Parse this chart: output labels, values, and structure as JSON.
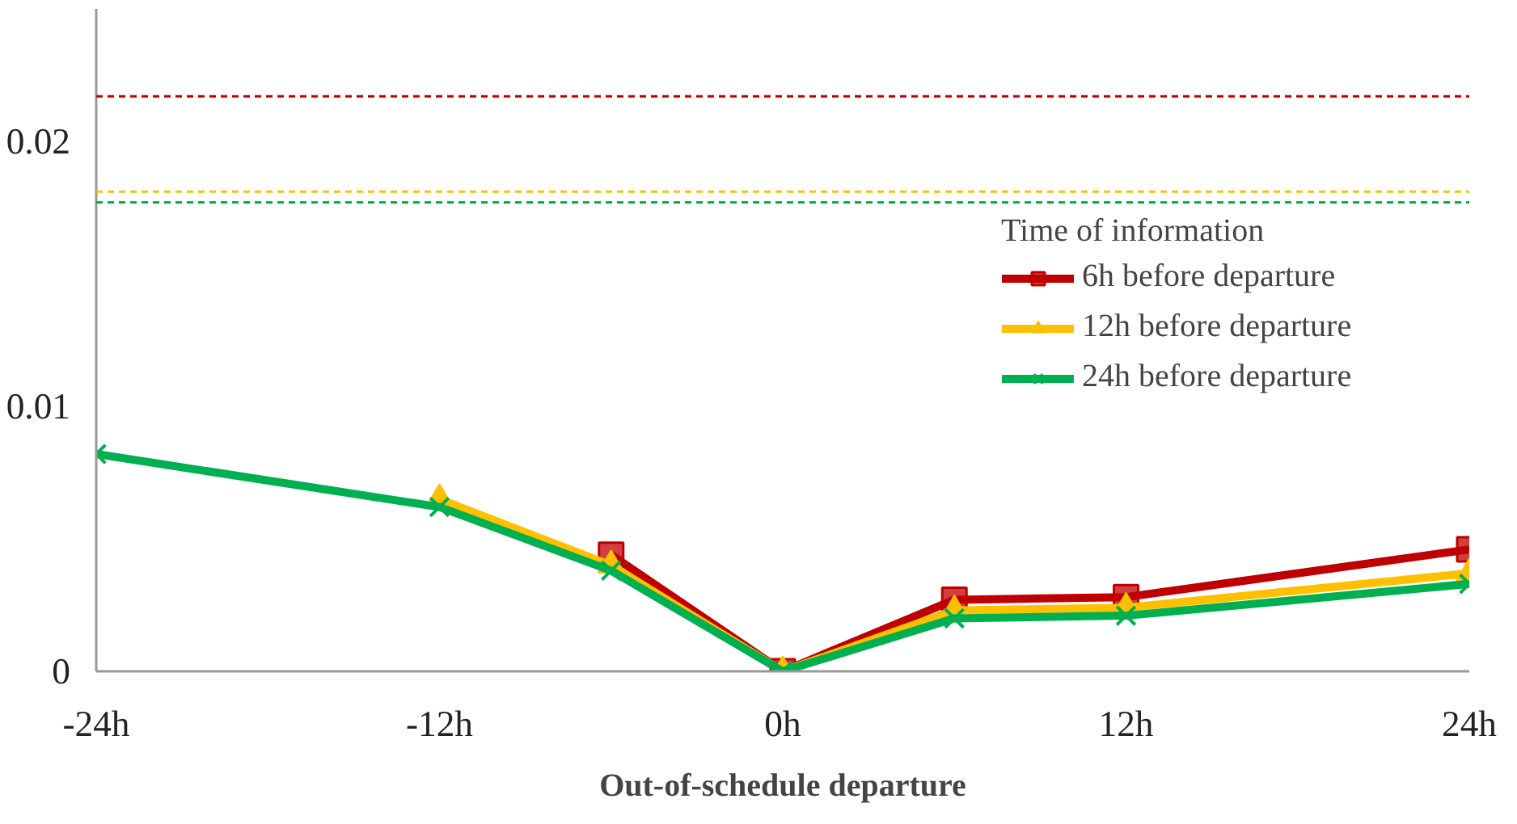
{
  "chart_data": {
    "type": "line",
    "xlabel": "Out-of-schedule departure",
    "legend_title": "Time of information",
    "legend": "right",
    "grid": false,
    "xlim": [
      -24,
      24
    ],
    "ylim": [
      0,
      0.025
    ],
    "xticks": [
      {
        "value": -24,
        "label": "-24h"
      },
      {
        "value": -12,
        "label": "-12h"
      },
      {
        "value": 0,
        "label": "0h"
      },
      {
        "value": 12,
        "label": "12h"
      },
      {
        "value": 24,
        "label": "24h"
      }
    ],
    "yticks": [
      0,
      0.01,
      0.02
    ],
    "series": [
      {
        "name": "6h before departure",
        "color": "#c00000",
        "marker": "square",
        "x": [
          -6,
          0,
          6,
          12,
          24
        ],
        "values": [
          0.0044,
          0,
          0.0027,
          0.0028,
          0.0046
        ]
      },
      {
        "name": "12h before departure",
        "color": "#ffc000",
        "marker": "triangle",
        "x": [
          -12,
          -6,
          0,
          6,
          12,
          24
        ],
        "values": [
          0.0065,
          0.004,
          0,
          0.0023,
          0.0024,
          0.0037
        ]
      },
      {
        "name": "24h before departure",
        "color": "#00b050",
        "marker": "cross",
        "x": [
          -24,
          -12,
          -6,
          0,
          6,
          12,
          24
        ],
        "values": [
          0.0082,
          0.0062,
          0.0038,
          0,
          0.002,
          0.0021,
          0.0033
        ]
      }
    ],
    "ref_lines": [
      {
        "axis": "y",
        "value": 0.0217,
        "color": "#c00000",
        "line_style": "dashed"
      },
      {
        "axis": "y",
        "value": 0.0181,
        "color": "#ffc000",
        "line_style": "dashed"
      },
      {
        "axis": "y",
        "value": 0.0177,
        "color": "#00b050",
        "line_style": "dashed"
      }
    ]
  }
}
